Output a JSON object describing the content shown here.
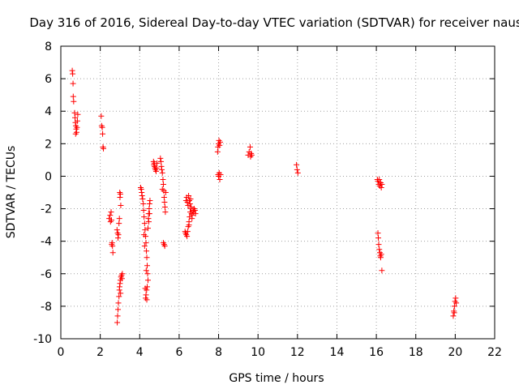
{
  "chart_data": {
    "type": "scatter",
    "title": "Day 316 of 2016, Sidereal Day-to-day VTEC variation (SDTVAR) for receiver naus",
    "xlabel": "GPS time / hours",
    "ylabel": "SDTVAR / TECUs",
    "xlim": [
      0,
      22
    ],
    "ylim": [
      -10,
      8
    ],
    "xticks": [
      0,
      2,
      4,
      6,
      8,
      10,
      12,
      14,
      16,
      18,
      20,
      22
    ],
    "yticks": [
      -10,
      -8,
      -6,
      -4,
      -2,
      0,
      2,
      4,
      6,
      8
    ],
    "grid": true,
    "marker": "+",
    "color": "#ff0000",
    "series": [
      {
        "name": "SDTVAR",
        "points": [
          [
            0.58,
            6.5
          ],
          [
            0.6,
            6.3
          ],
          [
            0.62,
            5.7
          ],
          [
            0.63,
            4.9
          ],
          [
            0.65,
            4.6
          ],
          [
            0.7,
            3.9
          ],
          [
            0.72,
            3.6
          ],
          [
            0.74,
            3.3
          ],
          [
            0.76,
            3.1
          ],
          [
            0.78,
            2.9
          ],
          [
            0.8,
            2.7
          ],
          [
            0.82,
            3.0
          ],
          [
            0.84,
            3.4
          ],
          [
            0.86,
            3.8
          ],
          [
            0.75,
            2.6
          ],
          [
            2.05,
            3.7
          ],
          [
            2.07,
            3.1
          ],
          [
            2.1,
            3.0
          ],
          [
            2.12,
            2.6
          ],
          [
            2.14,
            1.8
          ],
          [
            2.16,
            1.7
          ],
          [
            2.45,
            -2.6
          ],
          [
            2.5,
            -2.4
          ],
          [
            2.52,
            -2.8
          ],
          [
            2.55,
            -2.2
          ],
          [
            2.57,
            -2.7
          ],
          [
            2.6,
            -4.1
          ],
          [
            2.62,
            -4.3
          ],
          [
            2.64,
            -4.7
          ],
          [
            2.58,
            -4.2
          ],
          [
            2.85,
            -3.3
          ],
          [
            2.88,
            -3.5
          ],
          [
            2.9,
            -3.8
          ],
          [
            2.92,
            -3.6
          ],
          [
            2.95,
            -2.9
          ],
          [
            2.97,
            -2.6
          ],
          [
            3.0,
            -1.3
          ],
          [
            3.02,
            -1.1
          ],
          [
            3.04,
            -1.8
          ],
          [
            2.99,
            -1.0
          ],
          [
            2.86,
            -9.0
          ],
          [
            2.88,
            -8.6
          ],
          [
            2.9,
            -8.2
          ],
          [
            2.92,
            -7.8
          ],
          [
            2.95,
            -7.4
          ],
          [
            2.97,
            -7.0
          ],
          [
            3.0,
            -6.6
          ],
          [
            3.02,
            -6.4
          ],
          [
            3.05,
            -6.2
          ],
          [
            3.08,
            -6.1
          ],
          [
            3.1,
            -6.3
          ],
          [
            3.12,
            -6.0
          ],
          [
            2.98,
            -6.8
          ],
          [
            3.03,
            -7.2
          ],
          [
            4.05,
            -0.7
          ],
          [
            4.08,
            -0.8
          ],
          [
            4.1,
            -1.0
          ],
          [
            4.12,
            -1.2
          ],
          [
            4.15,
            -1.4
          ],
          [
            4.18,
            -1.7
          ],
          [
            4.2,
            -2.1
          ],
          [
            4.22,
            -2.5
          ],
          [
            4.25,
            -2.9
          ],
          [
            4.27,
            -3.3
          ],
          [
            4.3,
            -3.7
          ],
          [
            4.32,
            -4.1
          ],
          [
            4.34,
            -4.6
          ],
          [
            4.36,
            -5.0
          ],
          [
            4.38,
            -5.5
          ],
          [
            4.4,
            -6.0
          ],
          [
            4.42,
            -6.4
          ],
          [
            4.38,
            -6.8
          ],
          [
            4.35,
            -7.0
          ],
          [
            4.32,
            -7.3
          ],
          [
            4.3,
            -7.5
          ],
          [
            4.36,
            -7.6
          ],
          [
            4.28,
            -6.9
          ],
          [
            4.33,
            -5.8
          ],
          [
            4.25,
            -4.3
          ],
          [
            4.22,
            -3.6
          ],
          [
            4.45,
            -2.3
          ],
          [
            4.48,
            -2.0
          ],
          [
            4.5,
            -1.7
          ],
          [
            4.52,
            -1.5
          ],
          [
            4.46,
            -2.8
          ],
          [
            4.42,
            -3.2
          ],
          [
            4.44,
            -2.6
          ],
          [
            4.5,
            -2.3
          ],
          [
            4.7,
            0.9
          ],
          [
            4.72,
            0.7
          ],
          [
            4.75,
            0.6
          ],
          [
            4.78,
            0.5
          ],
          [
            4.8,
            0.4
          ],
          [
            4.83,
            0.3
          ],
          [
            4.86,
            0.5
          ],
          [
            4.88,
            0.8
          ],
          [
            4.74,
            0.8
          ],
          [
            5.05,
            1.1
          ],
          [
            5.08,
            0.9
          ],
          [
            5.1,
            0.6
          ],
          [
            5.12,
            0.4
          ],
          [
            5.15,
            0.2
          ],
          [
            5.18,
            -0.2
          ],
          [
            5.2,
            -0.5
          ],
          [
            5.22,
            -0.9
          ],
          [
            5.24,
            -1.3
          ],
          [
            5.26,
            -1.6
          ],
          [
            5.28,
            -1.9
          ],
          [
            5.3,
            -2.2
          ],
          [
            5.32,
            -1.0
          ],
          [
            5.15,
            -0.8
          ],
          [
            5.2,
            -4.1
          ],
          [
            5.24,
            -4.2
          ],
          [
            5.27,
            -4.3
          ],
          [
            6.3,
            -3.4
          ],
          [
            6.33,
            -3.5
          ],
          [
            6.36,
            -3.6
          ],
          [
            6.4,
            -3.7
          ],
          [
            6.43,
            -3.4
          ],
          [
            6.46,
            -3.1
          ],
          [
            6.5,
            -2.8
          ],
          [
            6.53,
            -2.5
          ],
          [
            6.56,
            -2.2
          ],
          [
            6.6,
            -2.0
          ],
          [
            6.63,
            -2.3
          ],
          [
            6.66,
            -2.4
          ],
          [
            6.7,
            -2.1
          ],
          [
            6.73,
            -2.2
          ],
          [
            6.76,
            -2.0
          ],
          [
            6.8,
            -2.1
          ],
          [
            6.83,
            -2.3
          ],
          [
            6.35,
            -1.5
          ],
          [
            6.38,
            -1.3
          ],
          [
            6.42,
            -1.6
          ],
          [
            6.45,
            -1.8
          ],
          [
            6.48,
            -1.2
          ],
          [
            6.52,
            -1.5
          ],
          [
            6.55,
            -1.7
          ],
          [
            6.58,
            -1.4
          ],
          [
            6.61,
            -1.9
          ],
          [
            6.65,
            -2.6
          ],
          [
            6.5,
            -3.0
          ],
          [
            7.95,
            1.5
          ],
          [
            7.97,
            1.8
          ],
          [
            8.0,
            2.0
          ],
          [
            8.02,
            2.2
          ],
          [
            8.05,
            1.9
          ],
          [
            8.08,
            2.1
          ],
          [
            7.98,
            0.1
          ],
          [
            8.0,
            0.0
          ],
          [
            8.03,
            0.2
          ],
          [
            8.06,
            -0.2
          ],
          [
            8.1,
            0.1
          ],
          [
            9.5,
            1.3
          ],
          [
            9.55,
            1.5
          ],
          [
            9.6,
            1.8
          ],
          [
            9.62,
            1.2
          ],
          [
            9.65,
            1.4
          ],
          [
            9.68,
            1.3
          ],
          [
            11.95,
            0.7
          ],
          [
            11.98,
            0.4
          ],
          [
            12.02,
            0.2
          ],
          [
            16.05,
            -0.2
          ],
          [
            16.08,
            -0.3
          ],
          [
            16.12,
            -0.5
          ],
          [
            16.15,
            -0.2
          ],
          [
            16.18,
            -0.6
          ],
          [
            16.22,
            -0.4
          ],
          [
            16.25,
            -0.7
          ],
          [
            16.28,
            -0.5
          ],
          [
            16.08,
            -3.5
          ],
          [
            16.1,
            -3.8
          ],
          [
            16.12,
            -4.2
          ],
          [
            16.15,
            -4.5
          ],
          [
            16.18,
            -4.7
          ],
          [
            16.2,
            -4.9
          ],
          [
            16.22,
            -5.0
          ],
          [
            16.25,
            -4.8
          ],
          [
            16.28,
            -5.8
          ],
          [
            19.9,
            -8.6
          ],
          [
            19.93,
            -8.3
          ],
          [
            19.96,
            -8.0
          ],
          [
            19.99,
            -7.7
          ],
          [
            20.02,
            -7.5
          ],
          [
            20.05,
            -7.8
          ],
          [
            19.95,
            -8.4
          ]
        ]
      }
    ]
  }
}
